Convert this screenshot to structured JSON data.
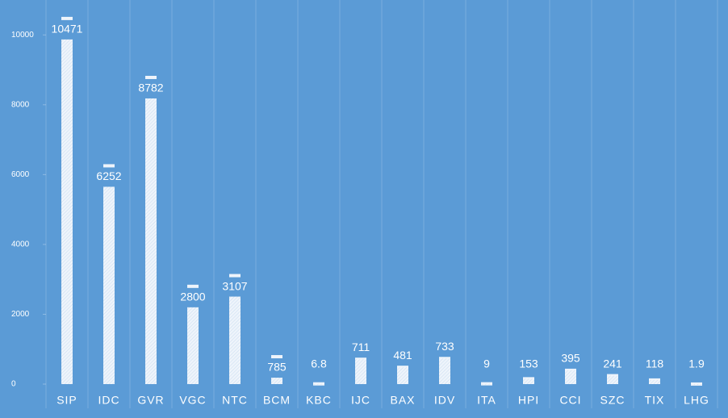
{
  "chart_data": {
    "type": "bar",
    "categories": [
      "SIP",
      "IDC",
      "GVR",
      "VGC",
      "NTC",
      "BCM",
      "KBC",
      "IJC",
      "BAX",
      "IDV",
      "ITA",
      "HPI",
      "CCI",
      "SZC",
      "TIX",
      "LHG"
    ],
    "values": [
      10471,
      6252,
      8782,
      2800,
      3107,
      785,
      6.8,
      711,
      481,
      733,
      9,
      153,
      395,
      241,
      118,
      1.9
    ],
    "color": "#eef4fb",
    "ylim": [
      0,
      11000
    ],
    "yticks": [
      0,
      2000,
      4000,
      6000,
      8000,
      10000
    ],
    "grid": true
  }
}
